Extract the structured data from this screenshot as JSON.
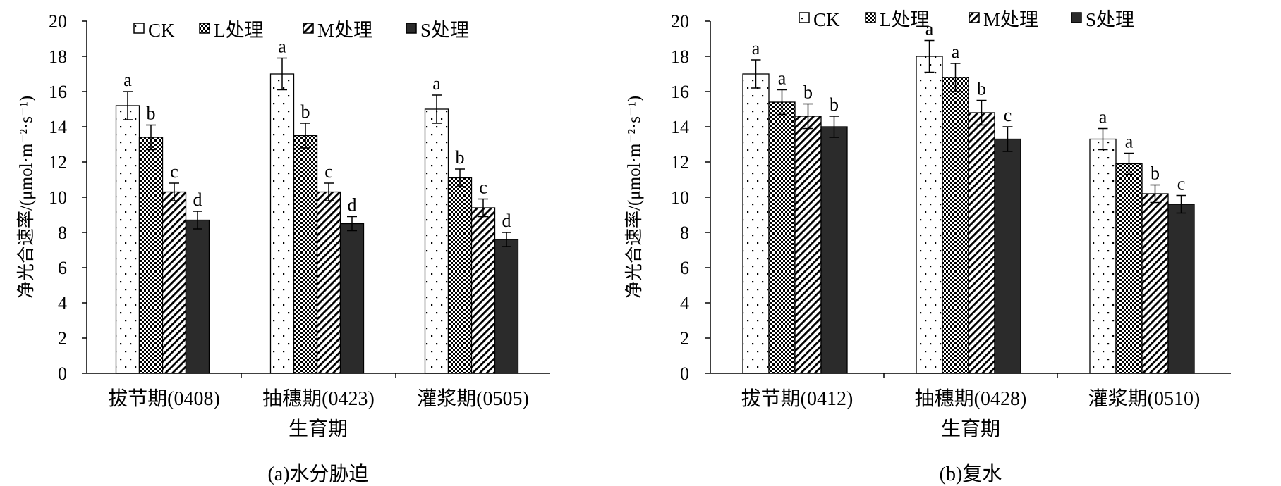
{
  "legend": [
    "CK",
    "L处理",
    "M处理",
    "S处理"
  ],
  "colors": {
    "axis": "#000000",
    "bar_s": "#2b2b2b",
    "bar_outline": "#000000",
    "background": "#ffffff"
  },
  "chart_data": [
    {
      "type": "bar",
      "title": "",
      "caption": "(a)水分胁迫",
      "xlabel": "生育期",
      "ylabel": "净光合速率/(μmol·m⁻²·s⁻¹)",
      "ylim": [
        0,
        20
      ],
      "yticks": [
        "0",
        "2",
        "4",
        "6",
        "8",
        "10",
        "12",
        "14",
        "16",
        "18",
        "20"
      ],
      "categories": [
        "拔节期(0408)",
        "抽穗期(0423)",
        "灌浆期(0505)"
      ],
      "series": [
        {
          "name": "CK",
          "values": [
            15.2,
            17.0,
            15.0
          ],
          "errors": [
            0.8,
            0.9,
            0.8
          ],
          "labels": [
            "a",
            "a",
            "a"
          ]
        },
        {
          "name": "L处理",
          "values": [
            13.4,
            13.5,
            11.1
          ],
          "errors": [
            0.7,
            0.7,
            0.5
          ],
          "labels": [
            "b",
            "b",
            "b"
          ]
        },
        {
          "name": "M处理",
          "values": [
            10.3,
            10.3,
            9.4
          ],
          "errors": [
            0.5,
            0.5,
            0.5
          ],
          "labels": [
            "c",
            "c",
            "c"
          ]
        },
        {
          "name": "S处理",
          "values": [
            8.7,
            8.5,
            7.6
          ],
          "errors": [
            0.5,
            0.4,
            0.4
          ],
          "labels": [
            "d",
            "d",
            "d"
          ]
        }
      ],
      "legend_position": "top",
      "grid": false
    },
    {
      "type": "bar",
      "title": "",
      "caption": "(b)复水",
      "xlabel": "生育期",
      "ylabel": "净光合速率/(μmol·m⁻²·s⁻¹)",
      "ylim": [
        0,
        20
      ],
      "yticks": [
        "0",
        "2",
        "4",
        "6",
        "8",
        "10",
        "12",
        "14",
        "16",
        "18",
        "20"
      ],
      "categories": [
        "拔节期(0412)",
        "抽穗期(0428)",
        "灌浆期(0510)"
      ],
      "series": [
        {
          "name": "CK",
          "values": [
            17.0,
            18.0,
            13.3
          ],
          "errors": [
            0.8,
            0.9,
            0.6
          ],
          "labels": [
            "a",
            "a",
            "a"
          ]
        },
        {
          "name": "L处理",
          "values": [
            15.4,
            16.8,
            11.9
          ],
          "errors": [
            0.7,
            0.8,
            0.6
          ],
          "labels": [
            "a",
            "a",
            "a"
          ]
        },
        {
          "name": "M处理",
          "values": [
            14.6,
            14.8,
            10.2
          ],
          "errors": [
            0.7,
            0.7,
            0.5
          ],
          "labels": [
            "b",
            "b",
            "b"
          ]
        },
        {
          "name": "S处理",
          "values": [
            14.0,
            13.3,
            9.6
          ],
          "errors": [
            0.6,
            0.7,
            0.5
          ],
          "labels": [
            "b",
            "c",
            "c"
          ]
        }
      ],
      "legend_position": "top",
      "grid": false
    }
  ]
}
